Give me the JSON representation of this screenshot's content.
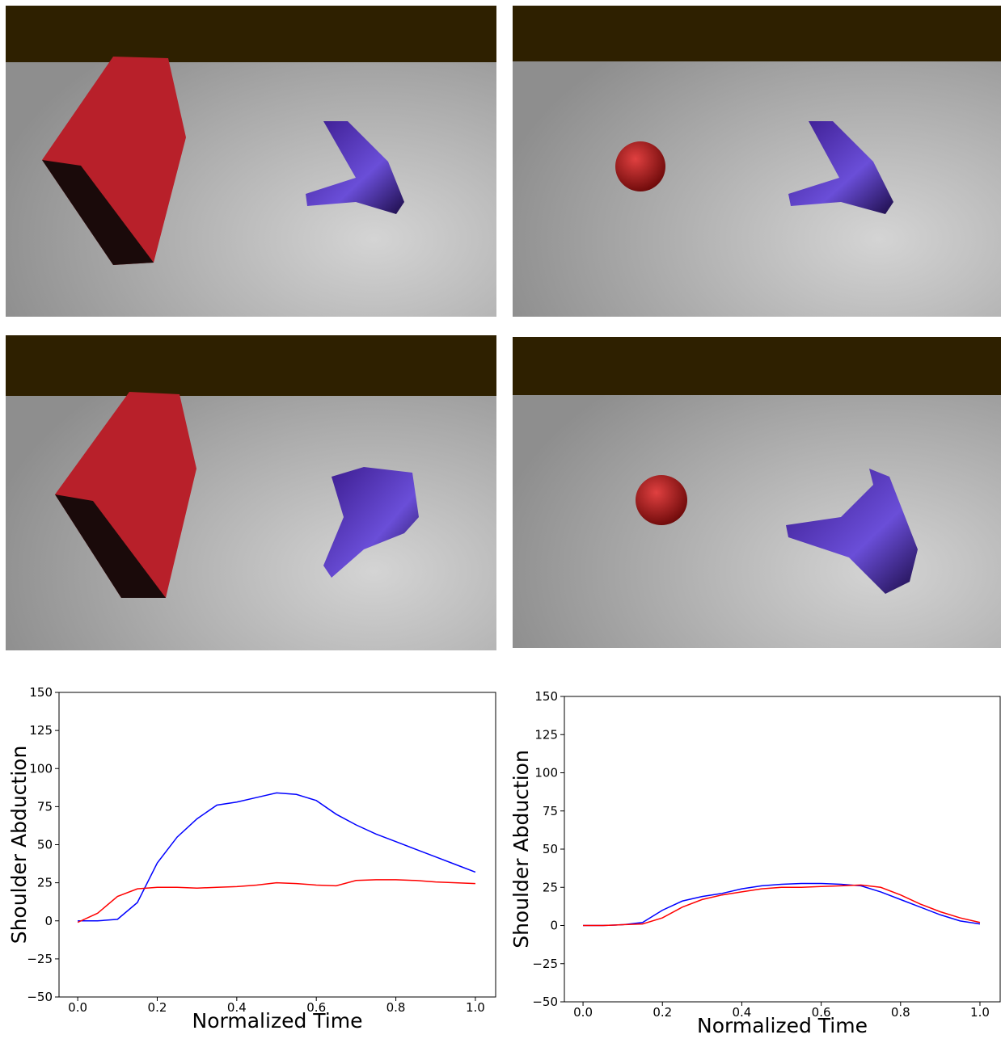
{
  "chart_data": [
    {
      "type": "line",
      "xlabel": "Normalized Time",
      "ylabel": "Shoulder Abduction",
      "x": [
        0,
        0.05,
        0.1,
        0.15,
        0.2,
        0.25,
        0.3,
        0.35,
        0.4,
        0.45,
        0.5,
        0.55,
        0.6,
        0.65,
        0.7,
        0.75,
        0.8,
        0.85,
        0.9,
        0.95,
        1.0
      ],
      "series": [
        {
          "color": "#0000ff",
          "values": [
            0,
            0,
            1,
            12,
            38,
            55,
            67,
            76,
            78,
            81,
            84,
            83,
            79,
            70,
            63,
            57,
            52,
            47,
            42,
            37,
            32
          ]
        },
        {
          "color": "#ff0000",
          "values": [
            -1,
            5,
            16,
            21,
            22,
            22,
            21.5,
            22,
            22.5,
            23.5,
            25,
            24.5,
            23.5,
            23,
            26.5,
            27,
            27,
            26.5,
            25.5,
            25,
            24.5
          ]
        }
      ],
      "xlim": [
        -0.047,
        1.051
      ],
      "ylim": [
        -50,
        150
      ],
      "xticks": [
        {
          "value": 0,
          "label": "0.0"
        },
        0.2,
        0.4,
        0.6,
        0.8,
        {
          "value": 1,
          "label": "1.0"
        }
      ],
      "yticks": [
        {
          "value": -50,
          "label": "−50"
        },
        {
          "value": -25,
          "label": "−25"
        },
        0,
        25,
        50,
        75,
        100,
        125,
        150
      ]
    },
    {
      "type": "line",
      "xlabel": "Normalized Time",
      "ylabel": "Shoulder Abduction",
      "x": [
        0,
        0.05,
        0.1,
        0.15,
        0.2,
        0.25,
        0.3,
        0.35,
        0.4,
        0.45,
        0.5,
        0.55,
        0.6,
        0.65,
        0.7,
        0.75,
        0.8,
        0.85,
        0.9,
        0.95,
        1.0
      ],
      "series": [
        {
          "color": "#0000ff",
          "values": [
            0,
            0,
            0.5,
            2,
            10,
            16,
            19,
            21,
            24,
            26,
            27,
            27.5,
            27.5,
            27,
            26,
            22,
            17,
            12,
            7,
            3,
            1
          ]
        },
        {
          "color": "#ff0000",
          "values": [
            0,
            0,
            0.5,
            1,
            5,
            12,
            17,
            20,
            22,
            24,
            25,
            25,
            25.5,
            26,
            26.5,
            25,
            20,
            14,
            9,
            5,
            2
          ]
        }
      ],
      "xlim": [
        -0.047,
        1.051
      ],
      "ylim": [
        -50,
        150
      ],
      "xticks": [
        {
          "value": 0,
          "label": "0.0"
        },
        0.2,
        0.4,
        0.6,
        0.8,
        {
          "value": 1,
          "label": "1.0"
        }
      ],
      "yticks": [
        {
          "value": -50,
          "label": "−50"
        },
        {
          "value": -25,
          "label": "−25"
        },
        0,
        25,
        50,
        75,
        100,
        125,
        150
      ]
    }
  ]
}
